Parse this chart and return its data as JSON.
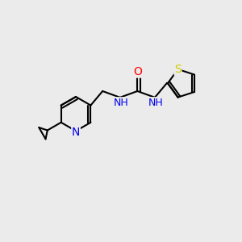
{
  "bg_color": "#ebebeb",
  "bond_color": "#000000",
  "bond_width": 1.5,
  "atom_colors": {
    "C": "#000000",
    "N": "#0000ee",
    "O": "#ff0000",
    "S": "#cccc00",
    "H": "#444444"
  },
  "font_size": 9,
  "fig_size": [
    3.0,
    3.0
  ],
  "dpi": 100
}
